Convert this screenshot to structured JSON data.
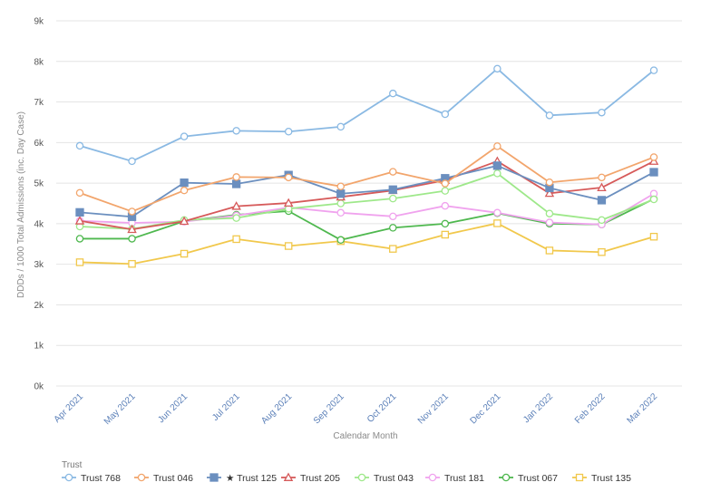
{
  "chart_data": {
    "type": "line",
    "title": "",
    "xlabel": "Calendar Month",
    "ylabel": "DDDs / 1000 Total Admissions (inc. Day Case)",
    "ylim": [
      0,
      9000
    ],
    "y_tick_labels": [
      "0k",
      "1k",
      "2k",
      "3k",
      "4k",
      "5k",
      "6k",
      "7k",
      "8k",
      "9k"
    ],
    "grid": true,
    "legend_title": "Trust",
    "legend_position": "bottom-left",
    "categories": [
      "Apr 2021",
      "May 2021",
      "Jun 2021",
      "Jul 2021",
      "Aug 2021",
      "Sep 2021",
      "Oct 2021",
      "Nov 2021",
      "Dec 2021",
      "Jan 2022",
      "Feb 2022",
      "Mar 2022"
    ],
    "series": [
      {
        "name": "Trust 768",
        "color": "#8ab9e3",
        "marker": "circle",
        "filled": false,
        "values": [
          5920,
          5540,
          6150,
          6290,
          6270,
          6390,
          7210,
          6700,
          7820,
          6670,
          6740,
          7780
        ]
      },
      {
        "name": "Trust 046",
        "color": "#f2a56c",
        "marker": "circle",
        "filled": false,
        "values": [
          4760,
          4300,
          4820,
          5150,
          5140,
          4920,
          5280,
          4990,
          5910,
          5020,
          5140,
          5640
        ]
      },
      {
        "name": "Trust 125",
        "color": "#6b8fbf",
        "marker": "square",
        "filled": true,
        "legend_prefix": "★",
        "values": [
          4280,
          4170,
          5010,
          4980,
          5200,
          4740,
          4840,
          5120,
          5430,
          4880,
          4580,
          5270
        ]
      },
      {
        "name": "Trust 205",
        "color": "#d65a5a",
        "marker": "triangle",
        "filled": false,
        "values": [
          4070,
          3860,
          4060,
          4430,
          4510,
          4660,
          4820,
          5070,
          5540,
          4750,
          4890,
          5540
        ]
      },
      {
        "name": "Trust 043",
        "color": "#9ee88a",
        "marker": "circle",
        "filled": false,
        "values": [
          3930,
          3870,
          4090,
          4140,
          4370,
          4500,
          4620,
          4810,
          5240,
          4250,
          4090,
          4600
        ]
      },
      {
        "name": "Trust 181",
        "color": "#f0a3ee",
        "marker": "circle",
        "filled": false,
        "values": [
          4070,
          4020,
          4050,
          4200,
          4400,
          4270,
          4180,
          4440,
          4270,
          4030,
          3980,
          4740
        ]
      },
      {
        "name": "Trust 067",
        "color": "#4fb84f",
        "marker": "circle",
        "filled": false,
        "values": [
          3630,
          3630,
          4060,
          4220,
          4310,
          3600,
          3900,
          4000,
          4260,
          4000,
          3980,
          4610
        ]
      },
      {
        "name": "Trust 135",
        "color": "#f1c84c",
        "marker": "square",
        "filled": false,
        "values": [
          3050,
          3010,
          3260,
          3620,
          3450,
          3570,
          3380,
          3730,
          4010,
          3340,
          3300,
          3680
        ]
      }
    ]
  }
}
